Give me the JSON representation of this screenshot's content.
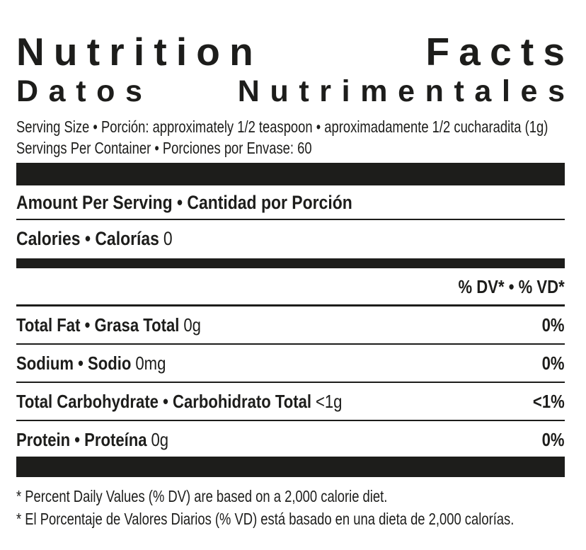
{
  "title": {
    "english": "Nutrition Facts",
    "english_words": [
      "Nutrition",
      "Facts"
    ],
    "spanish": "Datos Nutrimentales",
    "spanish_words": [
      "Datos",
      "Nutrimentales"
    ]
  },
  "serving": {
    "size_line": "Serving Size • Porción: approximately 1/2 teaspoon • aproximadamente 1/2 cucharadita (1g)",
    "per_container_line": "Servings Per Container • Porciones por Envase: 60"
  },
  "amount_per_serving_header": "Amount Per Serving • Cantidad por Porción",
  "calories": {
    "label": "Calories • Calorías",
    "value": "0"
  },
  "daily_value_header": "% DV* • % VD*",
  "nutrients": [
    {
      "name": "Total Fat • Grasa Total",
      "amount": "0g",
      "daily_value": "0%"
    },
    {
      "name": "Sodium • Sodio",
      "amount": "0mg",
      "daily_value": "0%"
    },
    {
      "name": "Total Carbohydrate • Carbohidrato Total",
      "amount": "<1g",
      "daily_value": "<1%"
    },
    {
      "name": "Protein • Proteína",
      "amount": "0g",
      "daily_value": "0%"
    }
  ],
  "footnotes": [
    "* Percent Daily Values (% DV) are based on a 2,000 calorie diet.",
    "* El Porcentaje de Valores Diarios (% VD) está basado en una dieta de 2,000 calorías."
  ],
  "colors": {
    "ink": "#1d1d1b",
    "background": "#ffffff"
  }
}
